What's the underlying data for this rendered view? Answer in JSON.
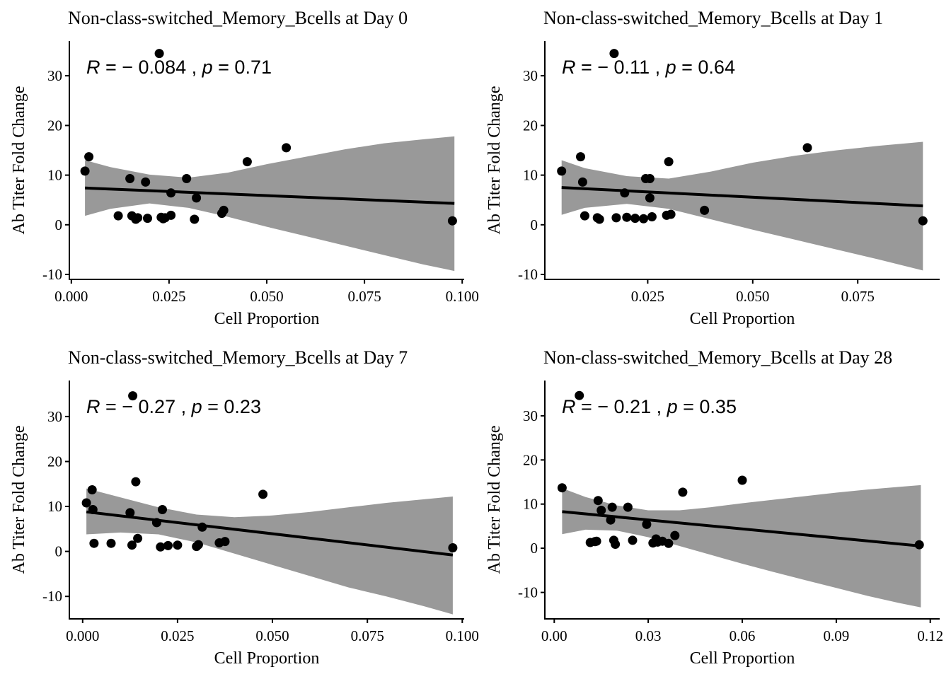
{
  "chart_data": [
    {
      "type": "scatter",
      "title": "Non-class-switched_Memory_Bcells at Day 0",
      "xlabel": "Cell Proportion",
      "ylabel": "Ab Titer Fold Change",
      "xlim": [
        -0.0005,
        0.1005
      ],
      "ylim": [
        -11,
        37
      ],
      "xticks": [
        0.0,
        0.025,
        0.05,
        0.075,
        0.1
      ],
      "xtick_labels": [
        "0.000",
        "0.025",
        "0.050",
        "0.075",
        "0.100"
      ],
      "yticks": [
        -10,
        0,
        10,
        20,
        30
      ],
      "ytick_labels": [
        "-10",
        "0",
        "10",
        "20",
        "30"
      ],
      "annotation": {
        "r_label": "R",
        "r_value": " = − 0.084",
        "sep": " , ",
        "p_label": "p",
        "p_value": " = 0.71"
      },
      "fit": {
        "x": [
          0.0035,
          0.098
        ],
        "y": [
          7.4,
          4.3
        ]
      },
      "band": {
        "x": [
          0.0035,
          0.01,
          0.02,
          0.03,
          0.04,
          0.05,
          0.06,
          0.07,
          0.08,
          0.09,
          0.098
        ],
        "lower": [
          1.8,
          3.2,
          4.3,
          3.4,
          1.6,
          -0.4,
          -2.3,
          -4.2,
          -6.1,
          -8.0,
          -9.3
        ],
        "upper": [
          13.0,
          11.6,
          10.1,
          9.5,
          10.5,
          12.2,
          13.7,
          15.2,
          16.4,
          17.2,
          17.8
        ]
      },
      "x": [
        0.0035,
        0.0045,
        0.012,
        0.015,
        0.0155,
        0.0165,
        0.017,
        0.019,
        0.0195,
        0.0225,
        0.023,
        0.0235,
        0.024,
        0.0255,
        0.0255,
        0.0295,
        0.0315,
        0.032,
        0.0385,
        0.039,
        0.045,
        0.055,
        0.0975
      ],
      "y": [
        10.8,
        13.7,
        1.8,
        9.3,
        1.8,
        1.1,
        1.4,
        8.6,
        1.3,
        34.5,
        1.5,
        1.2,
        1.4,
        1.9,
        6.4,
        9.3,
        1.1,
        5.4,
        2.3,
        2.9,
        12.7,
        15.5,
        0.8
      ]
    },
    {
      "type": "scatter",
      "title": "Non-class-switched_Memory_Bcells at Day 1",
      "xlabel": "Cell Proportion",
      "ylabel": "Ab Titer Fold Change",
      "xlim": [
        0.0005,
        0.0945
      ],
      "ylim": [
        -11,
        37
      ],
      "xticks": [
        0.025,
        0.05,
        0.075
      ],
      "xtick_labels": [
        "0.025",
        "0.050",
        "0.075"
      ],
      "yticks": [
        -10,
        0,
        10,
        20,
        30
      ],
      "ytick_labels": [
        "-10",
        "0",
        "10",
        "20",
        "30"
      ],
      "annotation": {
        "r_label": "R",
        "r_value": " = − 0.11",
        "sep": " , ",
        "p_label": "p",
        "p_value": " = 0.64"
      },
      "fit": {
        "x": [
          0.0045,
          0.0905
        ],
        "y": [
          7.5,
          3.8
        ]
      },
      "band": {
        "x": [
          0.0045,
          0.01,
          0.02,
          0.03,
          0.04,
          0.05,
          0.06,
          0.07,
          0.08,
          0.0905
        ],
        "lower": [
          2.0,
          3.4,
          4.2,
          3.2,
          1.1,
          -1.0,
          -3.0,
          -5.0,
          -7.0,
          -9.2
        ],
        "upper": [
          13.0,
          11.4,
          9.8,
          9.3,
          10.7,
          12.5,
          13.9,
          15.0,
          15.9,
          16.7
        ]
      },
      "x": [
        0.0045,
        0.009,
        0.0095,
        0.01,
        0.013,
        0.0135,
        0.017,
        0.0175,
        0.0195,
        0.02,
        0.022,
        0.024,
        0.0245,
        0.0255,
        0.0255,
        0.026,
        0.0295,
        0.03,
        0.0305,
        0.0385,
        0.063,
        0.0905
      ],
      "y": [
        10.8,
        13.7,
        8.6,
        1.8,
        1.4,
        1.1,
        34.5,
        1.4,
        6.4,
        1.5,
        1.3,
        1.2,
        9.3,
        9.3,
        5.4,
        1.6,
        1.9,
        12.7,
        2.1,
        2.9,
        15.5,
        0.8
      ]
    },
    {
      "type": "scatter",
      "title": "Non-class-switched_Memory_Bcells at Day 7",
      "xlabel": "Cell Proportion",
      "ylabel": "Ab Titer Fold Change",
      "xlim": [
        -0.0035,
        0.1005
      ],
      "ylim": [
        -15,
        38
      ],
      "xticks": [
        0.0,
        0.025,
        0.05,
        0.075,
        0.1
      ],
      "xtick_labels": [
        "0.000",
        "0.025",
        "0.050",
        "0.075",
        "0.100"
      ],
      "yticks": [
        -10,
        0,
        10,
        20,
        30
      ],
      "ytick_labels": [
        "-10",
        "0",
        "10",
        "20",
        "30"
      ],
      "annotation": {
        "r_label": "R",
        "r_value": " = − 0.27",
        "sep": " , ",
        "p_label": "p",
        "p_value": " = 0.23"
      },
      "fit": {
        "x": [
          0.001,
          0.0975
        ],
        "y": [
          8.8,
          -0.8
        ]
      },
      "band": {
        "x": [
          0.001,
          0.01,
          0.02,
          0.03,
          0.04,
          0.05,
          0.06,
          0.07,
          0.08,
          0.09,
          0.0975
        ],
        "lower": [
          3.8,
          4.2,
          3.8,
          2.0,
          -0.5,
          -3.0,
          -5.5,
          -8.0,
          -10.0,
          -12.2,
          -14.0
        ],
        "upper": [
          14.0,
          12.0,
          9.8,
          8.2,
          7.6,
          8.0,
          8.8,
          9.8,
          10.8,
          11.6,
          12.2
        ]
      },
      "x": [
        0.001,
        0.0025,
        0.0027,
        0.003,
        0.0075,
        0.0125,
        0.013,
        0.0132,
        0.014,
        0.0145,
        0.0195,
        0.0205,
        0.021,
        0.0225,
        0.025,
        0.03,
        0.0305,
        0.0315,
        0.036,
        0.0375,
        0.0475,
        0.0975
      ],
      "y": [
        10.8,
        13.7,
        9.3,
        1.8,
        1.8,
        8.6,
        1.4,
        34.6,
        15.5,
        2.9,
        6.4,
        1.0,
        9.3,
        1.3,
        1.4,
        1.1,
        1.5,
        5.4,
        1.9,
        2.2,
        12.7,
        0.8
      ]
    },
    {
      "type": "scatter",
      "title": "Non-class-switched_Memory_Bcells at Day 28",
      "xlabel": "Cell Proportion",
      "ylabel": "Ab Titer Fold Change",
      "xlim": [
        -0.003,
        0.123
      ],
      "ylim": [
        -16,
        38
      ],
      "xticks": [
        0.0,
        0.03,
        0.06,
        0.09,
        0.12
      ],
      "xtick_labels": [
        "0.00",
        "0.03",
        "0.06",
        "0.09",
        "0.12"
      ],
      "yticks": [
        -10,
        0,
        10,
        20,
        30
      ],
      "ytick_labels": [
        "-10",
        "0",
        "10",
        "20",
        "30"
      ],
      "annotation": {
        "r_label": "R",
        "r_value": " = − 0.21",
        "sep": " , ",
        "p_label": "p",
        "p_value": " = 0.35"
      },
      "fit": {
        "x": [
          0.0025,
          0.117
        ],
        "y": [
          8.3,
          0.5
        ]
      },
      "band": {
        "x": [
          0.0025,
          0.01,
          0.02,
          0.03,
          0.04,
          0.05,
          0.06,
          0.07,
          0.08,
          0.09,
          0.1,
          0.11,
          0.117
        ],
        "lower": [
          3.2,
          4.2,
          4.0,
          2.5,
          0.5,
          -1.5,
          -3.5,
          -5.4,
          -7.2,
          -9.0,
          -10.8,
          -12.4,
          -13.4
        ],
        "upper": [
          13.6,
          11.6,
          9.7,
          8.6,
          8.6,
          9.3,
          10.2,
          11.0,
          11.8,
          12.6,
          13.3,
          13.9,
          14.3
        ]
      },
      "x": [
        0.0025,
        0.008,
        0.0115,
        0.013,
        0.0135,
        0.014,
        0.015,
        0.018,
        0.0185,
        0.019,
        0.0195,
        0.0235,
        0.025,
        0.0295,
        0.0315,
        0.0325,
        0.033,
        0.0345,
        0.0365,
        0.0385,
        0.041,
        0.06,
        0.1165
      ],
      "y": [
        13.7,
        34.6,
        1.3,
        1.5,
        1.6,
        10.8,
        8.6,
        6.4,
        9.3,
        1.8,
        0.9,
        9.3,
        1.8,
        5.4,
        1.2,
        2.1,
        1.4,
        1.6,
        1.1,
        2.9,
        12.7,
        15.4,
        0.8
      ]
    }
  ]
}
